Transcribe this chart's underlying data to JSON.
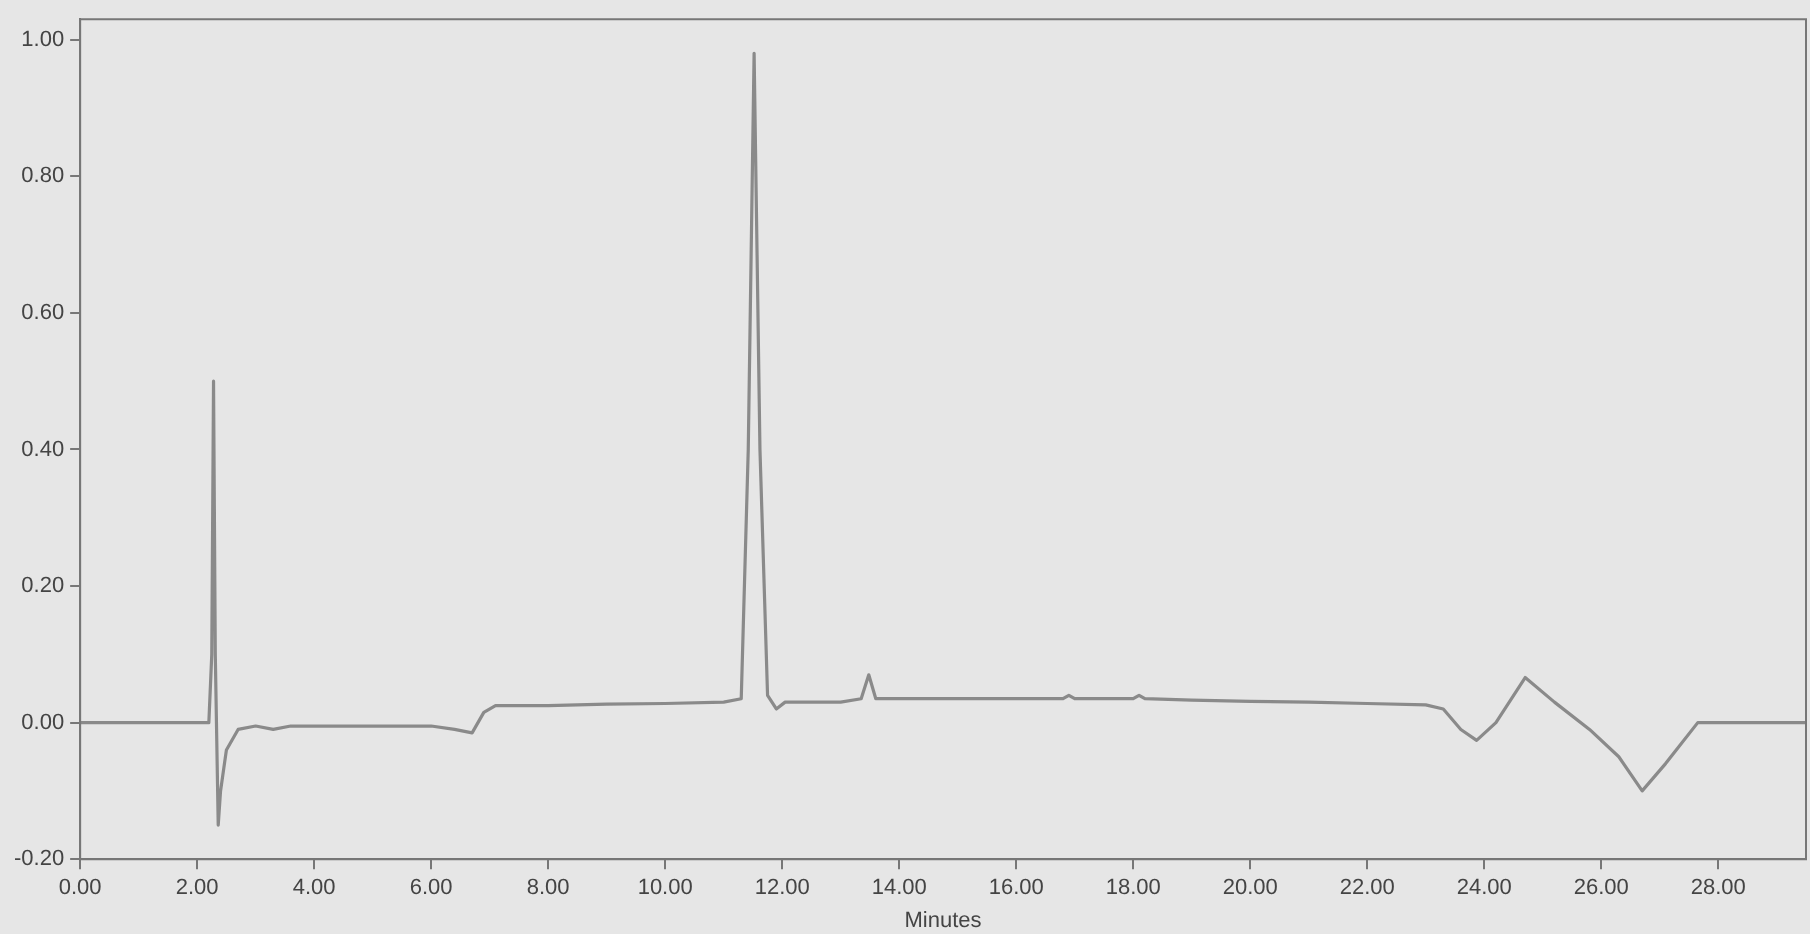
{
  "chart_data": {
    "type": "line",
    "xlabel": "Minutes",
    "x": [
      0,
      1,
      2,
      2.2,
      2.25,
      2.28,
      2.31,
      2.36,
      2.4,
      2.5,
      2.7,
      3.0,
      3.3,
      3.6,
      4,
      5,
      6,
      6.4,
      6.7,
      6.9,
      7.1,
      8,
      9,
      10,
      11,
      11.3,
      11.42,
      11.52,
      11.62,
      11.75,
      11.9,
      12.05,
      12.5,
      13,
      13.35,
      13.48,
      13.6,
      14,
      15,
      16,
      16.8,
      16.9,
      17,
      18,
      18.1,
      18.2,
      19,
      20,
      21,
      22,
      23,
      23.3,
      23.6,
      23.87,
      24.2,
      24.7,
      25.2,
      25.8,
      26.3,
      26.7,
      27.1,
      27.65,
      28,
      29.5
    ],
    "series": [
      {
        "color": "#8a8a8a",
        "values": [
          0,
          0,
          0,
          0,
          0.1,
          0.5,
          0.1,
          -0.15,
          -0.1,
          -0.04,
          -0.01,
          -0.005,
          -0.01,
          -0.005,
          -0.005,
          -0.005,
          -0.005,
          -0.01,
          -0.015,
          0.015,
          0.025,
          0.025,
          0.027,
          0.028,
          0.03,
          0.035,
          0.4,
          0.98,
          0.4,
          0.04,
          0.02,
          0.03,
          0.03,
          0.03,
          0.035,
          0.07,
          0.035,
          0.035,
          0.035,
          0.035,
          0.035,
          0.04,
          0.035,
          0.035,
          0.04,
          0.035,
          0.033,
          0.031,
          0.03,
          0.028,
          0.026,
          0.02,
          -0.01,
          -0.026,
          0.0,
          0.066,
          0.03,
          -0.01,
          -0.05,
          -0.1,
          -0.06,
          0,
          0,
          0
        ]
      }
    ],
    "xlim": [
      0,
      29.5
    ],
    "xticks": [
      {
        "value": 0,
        "label": "0.00"
      },
      {
        "value": 2,
        "label": "2.00"
      },
      {
        "value": 4,
        "label": "4.00"
      },
      {
        "value": 6,
        "label": "6.00"
      },
      {
        "value": 8,
        "label": "8.00"
      },
      {
        "value": 10,
        "label": "10.00"
      },
      {
        "value": 12,
        "label": "12.00"
      },
      {
        "value": 14,
        "label": "14.00"
      },
      {
        "value": 16,
        "label": "16.00"
      },
      {
        "value": 18,
        "label": "18.00"
      },
      {
        "value": 20,
        "label": "20.00"
      },
      {
        "value": 22,
        "label": "22.00"
      },
      {
        "value": 24,
        "label": "24.00"
      },
      {
        "value": 26,
        "label": "26.00"
      },
      {
        "value": 28,
        "label": "28.00"
      }
    ],
    "ylim": [
      -0.2,
      1.03
    ],
    "yticks": [
      {
        "value": -0.2,
        "label": "-0.20"
      },
      {
        "value": 0,
        "label": "0.00"
      },
      {
        "value": 0.2,
        "label": "0.20"
      },
      {
        "value": 0.4,
        "label": "0.40"
      },
      {
        "value": 0.6,
        "label": "0.60"
      },
      {
        "value": 0.8,
        "label": "0.80"
      },
      {
        "value": 1,
        "label": "1.00"
      }
    ],
    "grid": false,
    "legend": false,
    "marker": "none",
    "line_style": "solid"
  }
}
